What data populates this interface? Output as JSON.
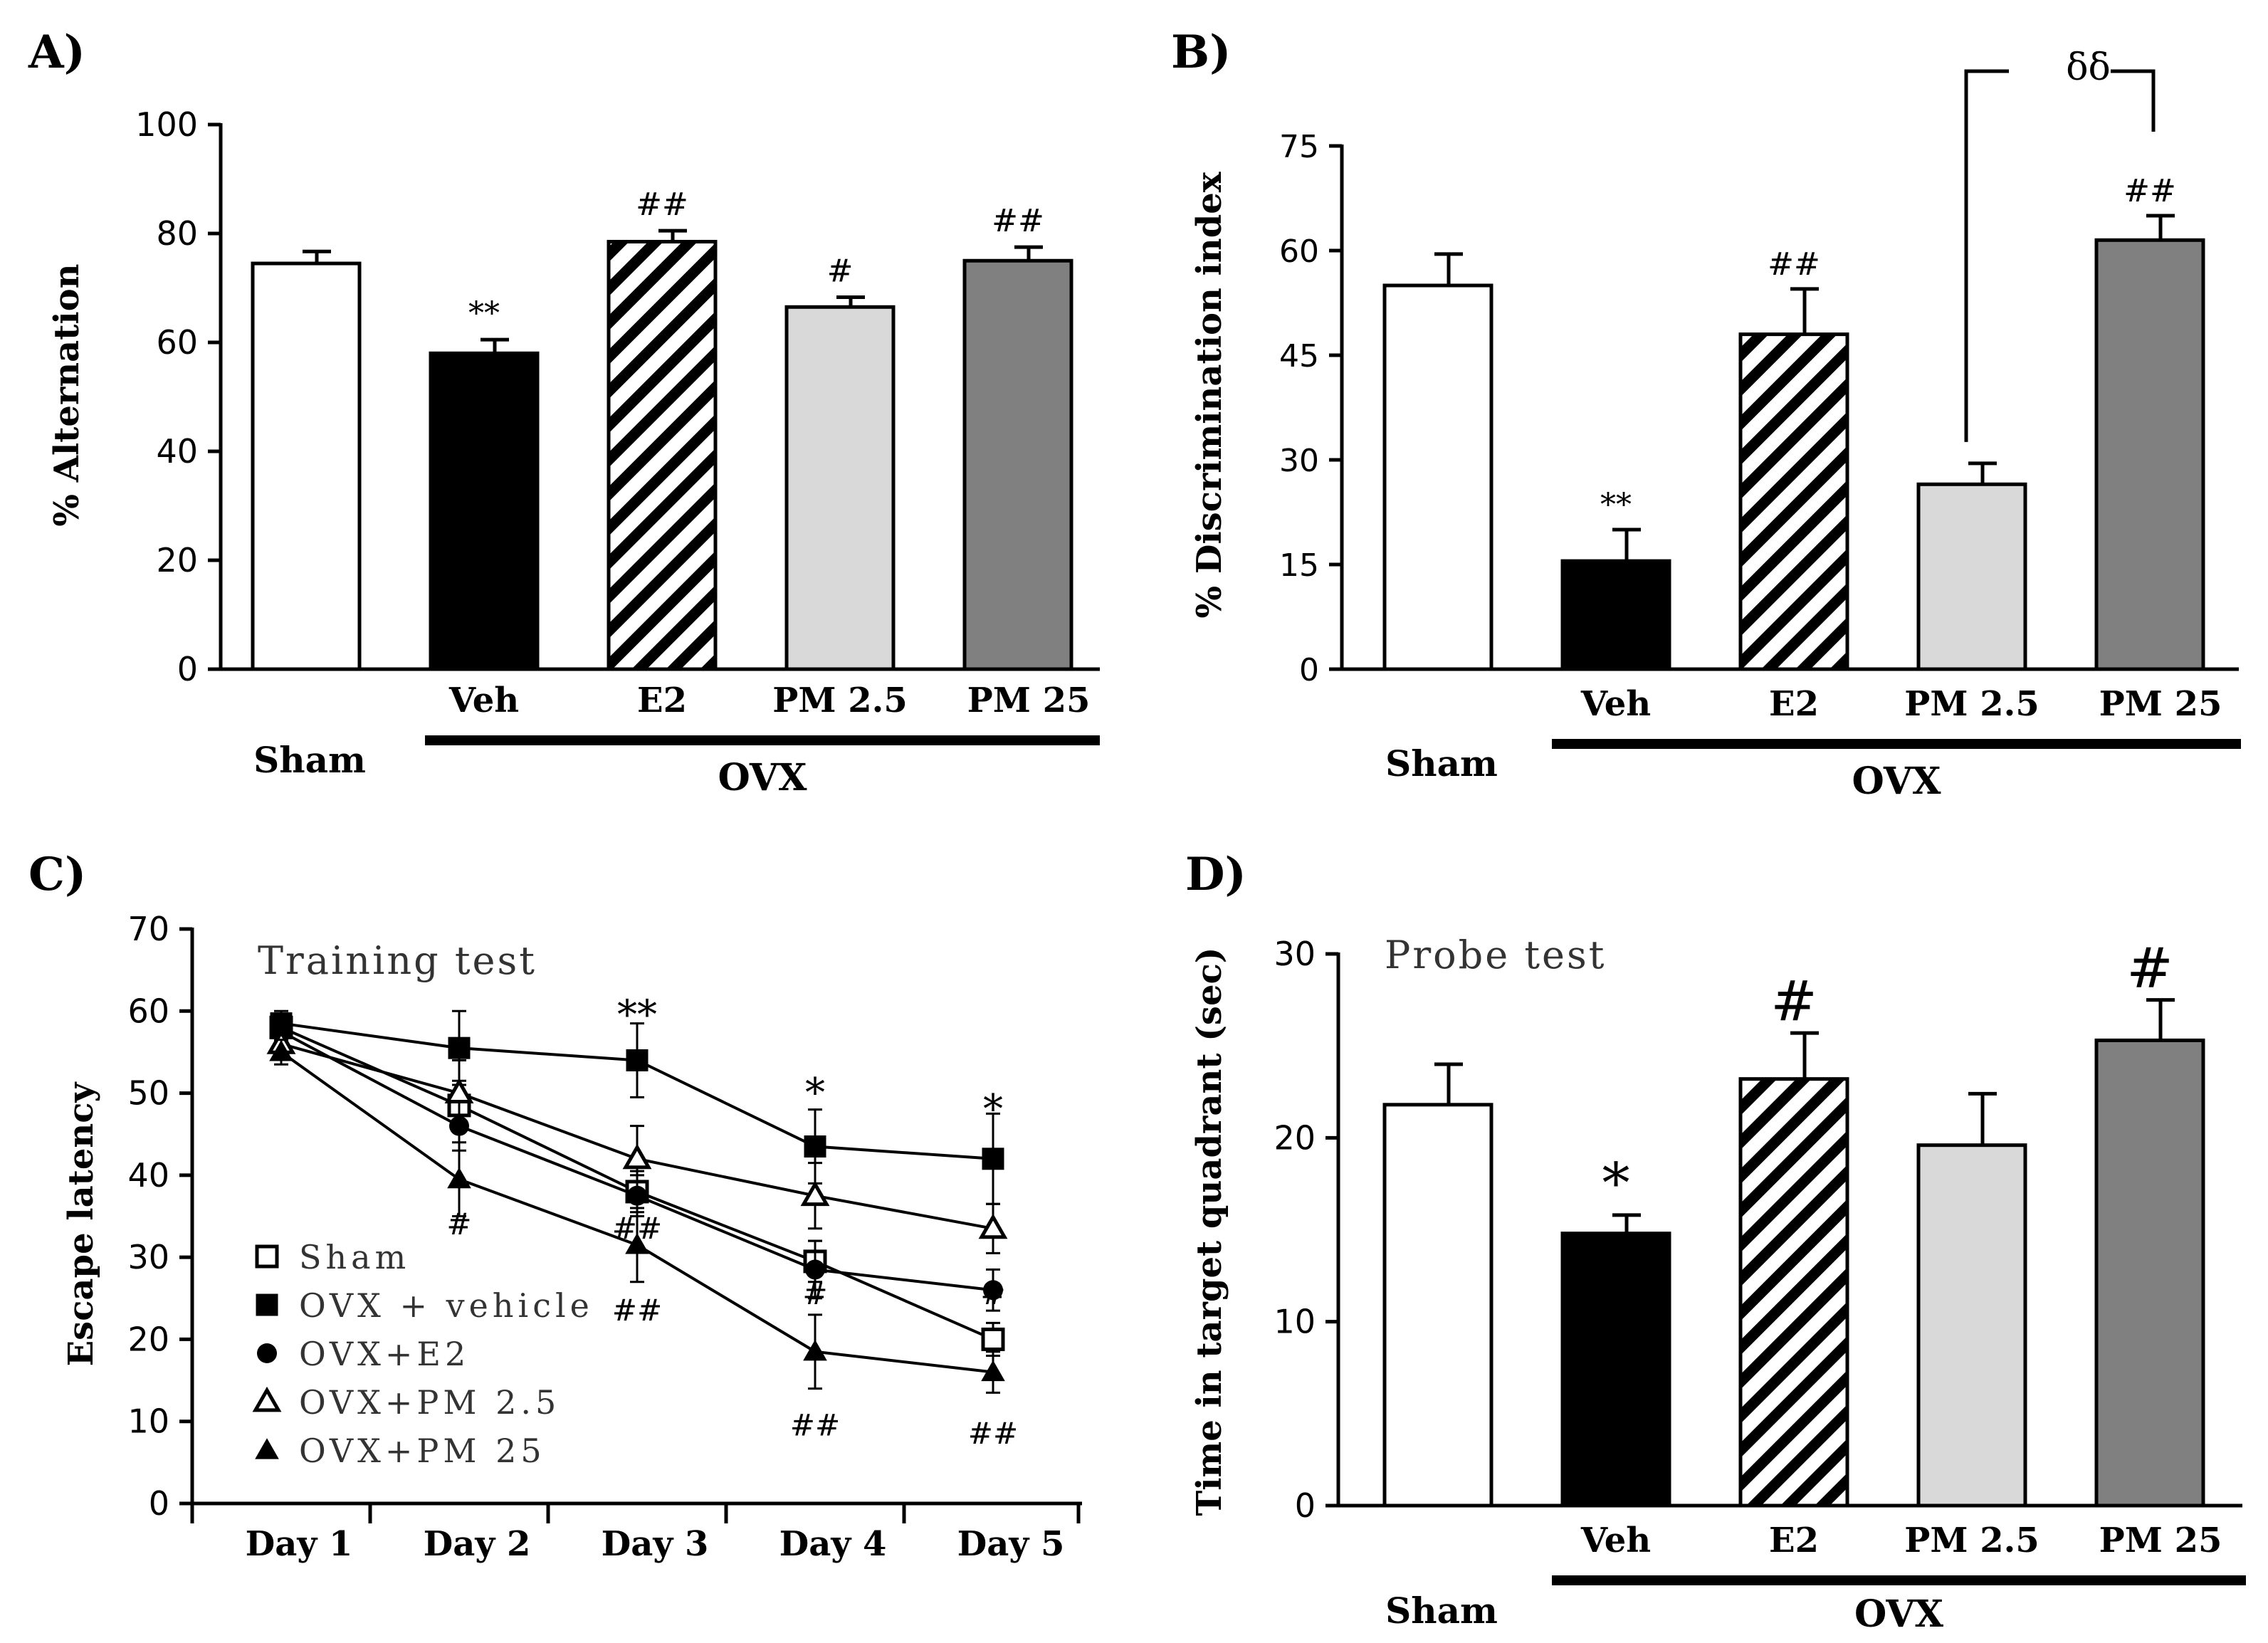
{
  "chart_data": [
    {
      "id": "A",
      "panel_label": "A)",
      "type": "bar",
      "ylabel": "% Alternation",
      "ylim": [
        0,
        100
      ],
      "yticks": [
        "0",
        "20",
        "40",
        "60",
        "80",
        "100"
      ],
      "categories": [
        "Sham",
        "Veh",
        "E2",
        "PM 2.5",
        "PM 25"
      ],
      "values": [
        74.5,
        58,
        78.5,
        66.5,
        75
      ],
      "errors": [
        2.2,
        2.5,
        2,
        1.8,
        2.5
      ],
      "fills": [
        "white",
        "black",
        "hatch",
        "light",
        "dark"
      ],
      "annotations": [
        "",
        "**",
        "##",
        "#",
        "##"
      ],
      "group_label": "OVX",
      "sham_label": "Sham"
    },
    {
      "id": "B",
      "panel_label": "B)",
      "type": "bar",
      "ylabel": "% Discrimination index",
      "ylim": [
        0,
        75
      ],
      "yticks": [
        "0",
        "15",
        "30",
        "45",
        "60",
        "75"
      ],
      "categories": [
        "Sham",
        "Veh",
        "E2",
        "PM 2.5",
        "PM 25"
      ],
      "values": [
        55,
        15.5,
        48,
        26.5,
        61.5
      ],
      "errors": [
        4.5,
        4.5,
        6.5,
        3,
        3.5
      ],
      "fills": [
        "white",
        "black",
        "hatch",
        "light",
        "dark"
      ],
      "annotations": [
        "",
        "**",
        "##",
        "",
        "##"
      ],
      "bracket_label": "δδ",
      "group_label": "OVX",
      "sham_label": "Sham"
    },
    {
      "id": "C",
      "panel_label": "C)",
      "type": "line",
      "inner_title": "Training test",
      "ylabel": "Escape latency",
      "ylim": [
        0,
        70
      ],
      "yticks": [
        "0",
        "10",
        "20",
        "30",
        "40",
        "50",
        "60",
        "70"
      ],
      "categories": [
        "Day 1",
        "Day 2",
        "Day 3",
        "Day 4",
        "Day 5"
      ],
      "series": [
        {
          "name": "Sham",
          "marker": "open-square",
          "values": [
            58,
            48.5,
            38,
            29.5,
            20
          ],
          "errors": [
            1.5,
            3,
            2.5,
            2.5,
            2
          ]
        },
        {
          "name": "OVX + vehicle",
          "marker": "filled-square",
          "values": [
            58.5,
            55.5,
            54,
            43.5,
            42
          ],
          "errors": [
            1.5,
            4.5,
            4.5,
            4.5,
            5.5
          ]
        },
        {
          "name": "OVX+E2",
          "marker": "filled-circle",
          "values": [
            57.5,
            46,
            37.5,
            28.5,
            26
          ],
          "errors": [
            1.5,
            3,
            2.5,
            3.5,
            2.5
          ]
        },
        {
          "name": "OVX+PM 2.5",
          "marker": "open-triangle",
          "values": [
            56,
            50,
            42,
            37.5,
            33.5
          ],
          "errors": [
            1.5,
            4,
            4,
            4,
            3
          ]
        },
        {
          "name": "OVX+PM 25",
          "marker": "filled-triangle",
          "values": [
            55,
            39.5,
            31.5,
            18.5,
            16
          ],
          "errors": [
            1.5,
            4.5,
            4.5,
            4.5,
            2.5
          ]
        }
      ],
      "annotations": [
        {
          "label": "#",
          "day": 1,
          "y": 34
        },
        {
          "label": "**",
          "day": 2,
          "y": 60.5
        },
        {
          "label": "##",
          "day": 2,
          "y": 33.5
        },
        {
          "label": "##",
          "day": 2,
          "y": 23.5
        },
        {
          "label": "*",
          "day": 3,
          "y": 51
        },
        {
          "label": "#",
          "day": 3,
          "y": 25.5
        },
        {
          "label": "##",
          "day": 3,
          "y": 9.5
        },
        {
          "label": "*",
          "day": 4,
          "y": 49
        },
        {
          "label": "#",
          "day": 4,
          "y": 25.5
        },
        {
          "label": "##",
          "day": 4,
          "y": 8.5
        }
      ]
    },
    {
      "id": "D",
      "panel_label": "D)",
      "type": "bar",
      "inner_title": "Probe test",
      "ylabel": "Time in target quadrant (sec)",
      "ylim": [
        0,
        30
      ],
      "yticks": [
        "0",
        "10",
        "20",
        "30"
      ],
      "categories": [
        "Sham",
        "Veh",
        "E2",
        "PM 2.5",
        "PM 25"
      ],
      "values": [
        21.8,
        14.8,
        23.2,
        19.6,
        25.3
      ],
      "errors": [
        2.2,
        1,
        2.5,
        2.8,
        2.2
      ],
      "fills": [
        "white",
        "black",
        "hatch",
        "light",
        "dark"
      ],
      "annotations": [
        "",
        "*",
        "#",
        "",
        "#"
      ],
      "group_label": "OVX",
      "sham_label": "Sham"
    }
  ],
  "colors": {
    "ink": "#000000",
    "light_bar": "#d9d9d9",
    "dark_bar": "#808080",
    "white_bar": "#ffffff"
  }
}
